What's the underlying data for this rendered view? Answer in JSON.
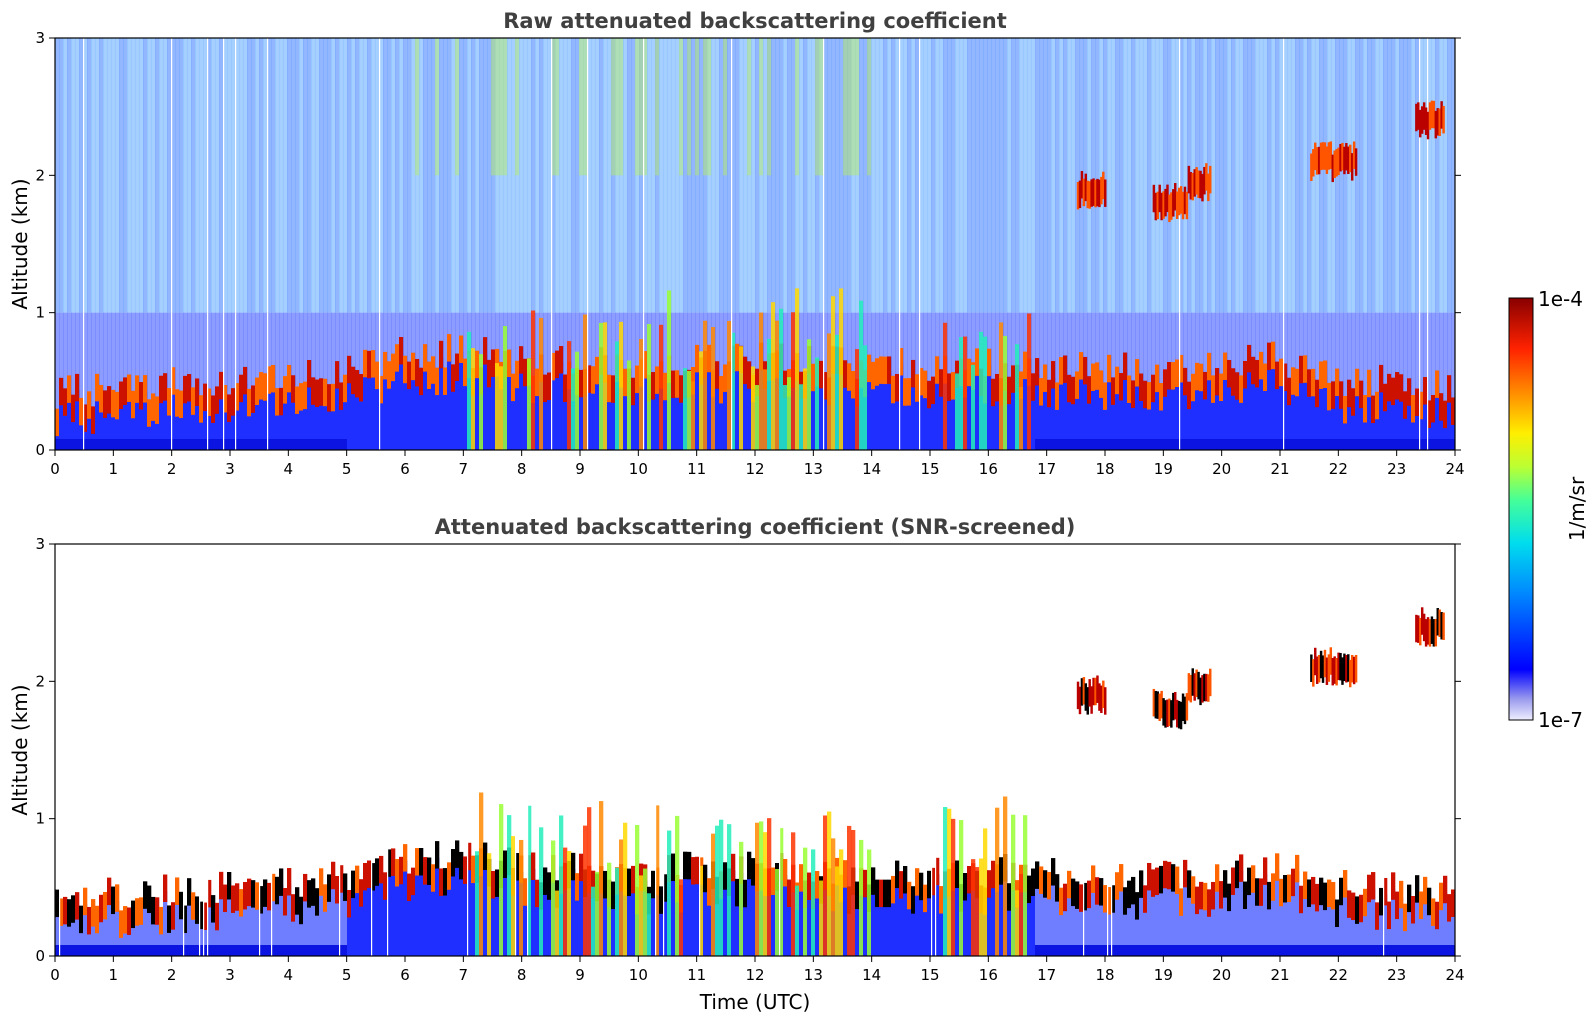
{
  "chart_data": [
    {
      "type": "heatmap",
      "title": "Raw attenuated backscattering coefficient",
      "ylabel": "Altitude (km)",
      "xlabel": "",
      "xlim": [
        0,
        24
      ],
      "ylim": [
        0,
        3
      ],
      "x_ticks": [
        "0",
        "1",
        "2",
        "3",
        "4",
        "5",
        "6",
        "7",
        "8",
        "9",
        "10",
        "11",
        "12",
        "13",
        "14",
        "15",
        "16",
        "17",
        "18",
        "19",
        "20",
        "21",
        "22",
        "23",
        "24"
      ],
      "y_ticks": [
        "0",
        "1",
        "2",
        "3"
      ],
      "grid": false,
      "screened": false,
      "boundary_layer_top_km": [
        {
          "t": 0,
          "h": 0.3
        },
        {
          "t": 3.5,
          "h": 0.4
        },
        {
          "t": 5,
          "h": 0.45
        },
        {
          "t": 6,
          "h": 0.6
        },
        {
          "t": 7,
          "h": 0.6
        },
        {
          "t": 8,
          "h": 0.55
        },
        {
          "t": 10,
          "h": 0.5
        },
        {
          "t": 12,
          "h": 0.55
        },
        {
          "t": 14,
          "h": 0.5
        },
        {
          "t": 17,
          "h": 0.5
        },
        {
          "t": 19,
          "h": 0.45
        },
        {
          "t": 21,
          "h": 0.55
        },
        {
          "t": 22,
          "h": 0.4
        },
        {
          "t": 24,
          "h": 0.35
        }
      ],
      "cloud_features": [
        {
          "t_start": 17.5,
          "t_end": 18.0,
          "h": 1.9
        },
        {
          "t_start": 18.8,
          "t_end": 19.4,
          "h": 1.8
        },
        {
          "t_start": 19.4,
          "t_end": 19.8,
          "h": 1.95
        },
        {
          "t_start": 21.5,
          "t_end": 22.3,
          "h": 2.1
        },
        {
          "t_start": 23.3,
          "t_end": 23.8,
          "h": 2.4
        }
      ]
    },
    {
      "type": "heatmap",
      "title": "Attenuated backscattering coefficient (SNR-screened)",
      "ylabel": "Altitude (km)",
      "xlabel": "Time (UTC)",
      "xlim": [
        0,
        24
      ],
      "ylim": [
        0,
        3
      ],
      "x_ticks": [
        "0",
        "1",
        "2",
        "3",
        "4",
        "5",
        "6",
        "7",
        "8",
        "9",
        "10",
        "11",
        "12",
        "13",
        "14",
        "15",
        "16",
        "17",
        "18",
        "19",
        "20",
        "21",
        "22",
        "23",
        "24"
      ],
      "y_ticks": [
        "0",
        "1",
        "2",
        "3"
      ],
      "grid": false,
      "screened": true,
      "boundary_layer_top_km": [
        {
          "t": 0,
          "h": 0.3
        },
        {
          "t": 3.5,
          "h": 0.4
        },
        {
          "t": 5,
          "h": 0.45
        },
        {
          "t": 6,
          "h": 0.6
        },
        {
          "t": 7,
          "h": 0.6
        },
        {
          "t": 8,
          "h": 0.55
        },
        {
          "t": 10,
          "h": 0.5
        },
        {
          "t": 12,
          "h": 0.55
        },
        {
          "t": 14,
          "h": 0.5
        },
        {
          "t": 17,
          "h": 0.5
        },
        {
          "t": 19,
          "h": 0.45
        },
        {
          "t": 21,
          "h": 0.55
        },
        {
          "t": 22,
          "h": 0.4
        },
        {
          "t": 24,
          "h": 0.35
        }
      ],
      "cloud_features": [
        {
          "t_start": 17.5,
          "t_end": 18.0,
          "h": 1.9
        },
        {
          "t_start": 18.8,
          "t_end": 19.4,
          "h": 1.8
        },
        {
          "t_start": 19.4,
          "t_end": 19.8,
          "h": 1.95
        },
        {
          "t_start": 21.5,
          "t_end": 22.3,
          "h": 2.1
        },
        {
          "t_start": 23.3,
          "t_end": 23.8,
          "h": 2.4
        }
      ]
    }
  ],
  "colorbar": {
    "label": "1/m/sr",
    "max_label": "1e-4",
    "min_label": "1e-7",
    "scale": "log",
    "colormap": "jet",
    "colors": [
      "#eeeeff",
      "#8888ee",
      "#0000ff",
      "#00aaff",
      "#00ffcc",
      "#aaff44",
      "#ffee00",
      "#ff8800",
      "#ff2200",
      "#880000"
    ]
  }
}
